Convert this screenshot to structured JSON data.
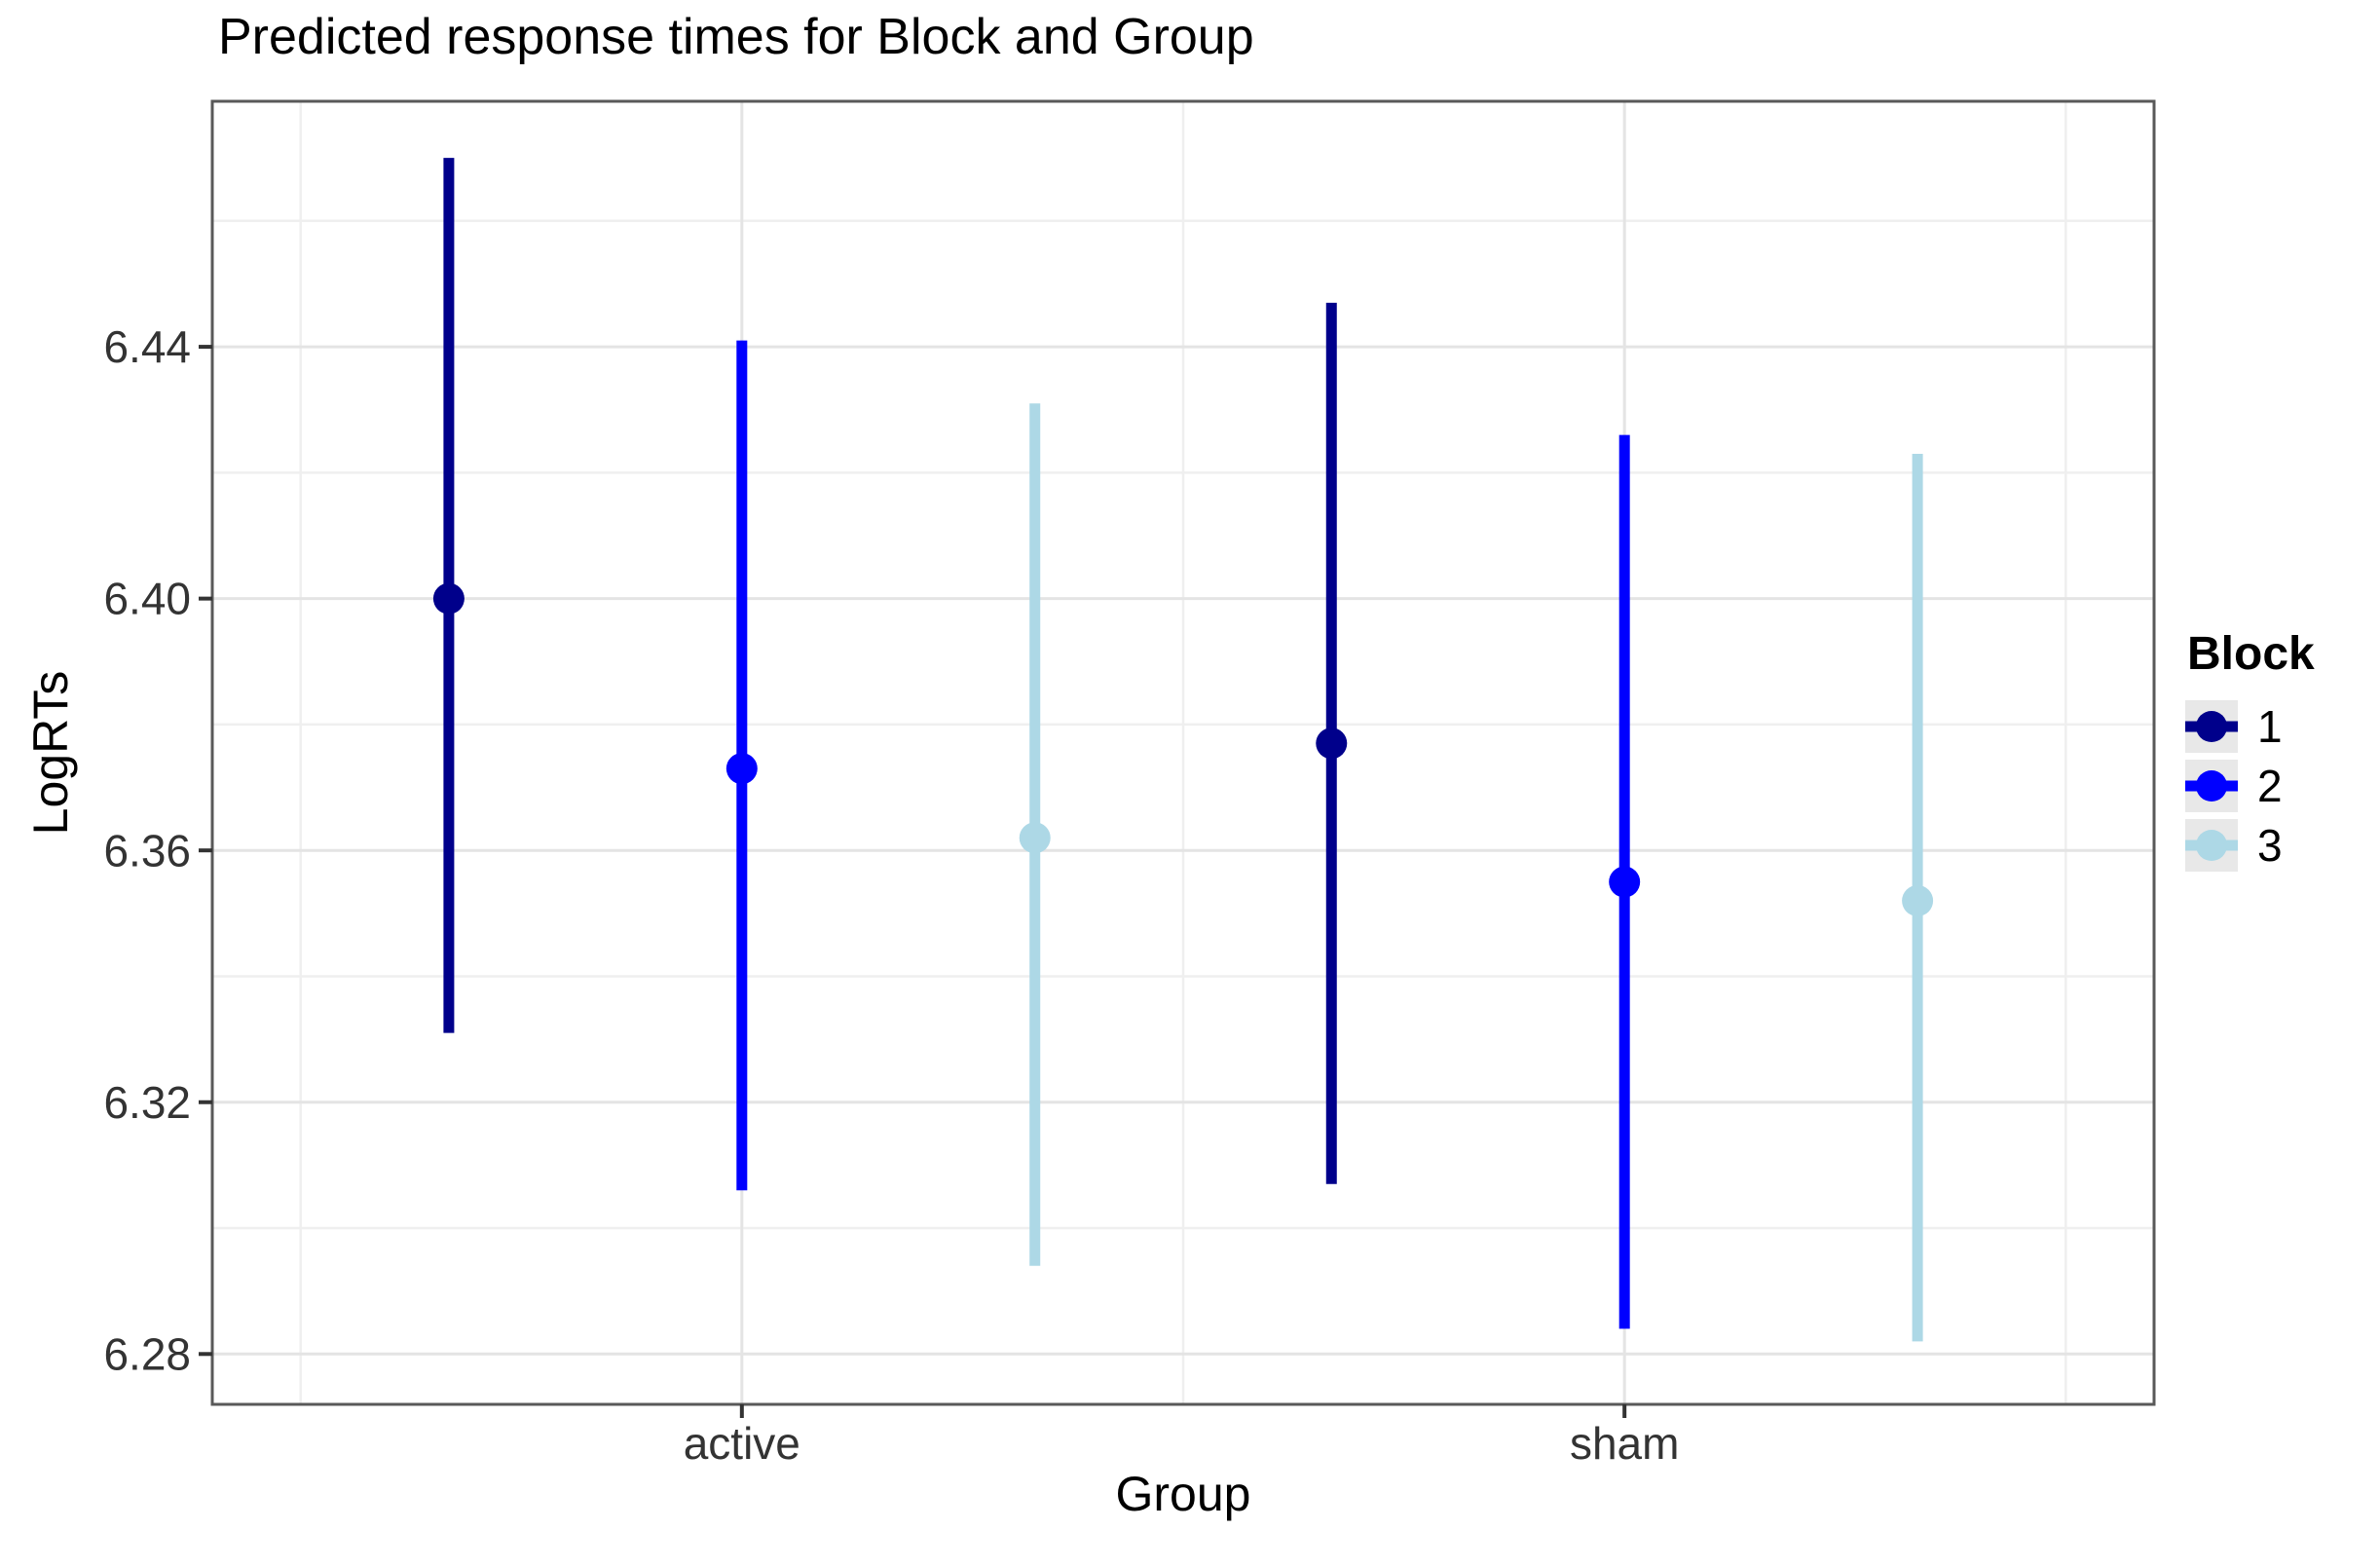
{
  "chart_data": {
    "type": "pointrange",
    "title": "Predicted response times for Block and Group",
    "xlabel": "Group",
    "ylabel": "LogRTs",
    "categories": [
      "active",
      "sham"
    ],
    "category_positions": [
      1,
      2
    ],
    "xlim": [
      0.4,
      2.6
    ],
    "ylim": [
      6.272,
      6.479
    ],
    "dodge": 0.332,
    "grid": true,
    "y_axis": {
      "ticks": [
        {
          "value": 6.28,
          "label": "6.28"
        },
        {
          "value": 6.32,
          "label": "6.32"
        },
        {
          "value": 6.36,
          "label": "6.36"
        },
        {
          "value": 6.4,
          "label": "6.40"
        },
        {
          "value": 6.44,
          "label": "6.44"
        }
      ],
      "minor": [
        6.3,
        6.34,
        6.38,
        6.42,
        6.46
      ]
    },
    "x_minor_positions": [
      0.5,
      1.5,
      2.5
    ],
    "series": [
      {
        "name": "1",
        "color": "#00008B",
        "points": [
          {
            "group": "active",
            "y": 6.4,
            "ymin": 6.331,
            "ymax": 6.47
          },
          {
            "group": "sham",
            "y": 6.377,
            "ymin": 6.307,
            "ymax": 6.447
          }
        ]
      },
      {
        "name": "2",
        "color": "#0000FF",
        "points": [
          {
            "group": "active",
            "y": 6.373,
            "ymin": 6.306,
            "ymax": 6.441
          },
          {
            "group": "sham",
            "y": 6.355,
            "ymin": 6.284,
            "ymax": 6.426
          }
        ]
      },
      {
        "name": "3",
        "color": "#ADD8E6",
        "points": [
          {
            "group": "active",
            "y": 6.362,
            "ymin": 6.294,
            "ymax": 6.431
          },
          {
            "group": "sham",
            "y": 6.352,
            "ymin": 6.282,
            "ymax": 6.423
          }
        ]
      }
    ],
    "legend": {
      "title": "Block",
      "position": "right",
      "entries": [
        {
          "label": "1",
          "color": "#00008B"
        },
        {
          "label": "2",
          "color": "#0000FF"
        },
        {
          "label": "3",
          "color": "#ADD8E6"
        }
      ]
    },
    "colors": {
      "background": "#ffffff",
      "panel_border": "#595959",
      "grid_major": "#e4e4e4",
      "grid_minor": "#efefef",
      "tick_mark": "#333333",
      "tick_text": "#333333",
      "title_text": "#000000",
      "legend_key_bg": "#e8e8e8"
    }
  }
}
